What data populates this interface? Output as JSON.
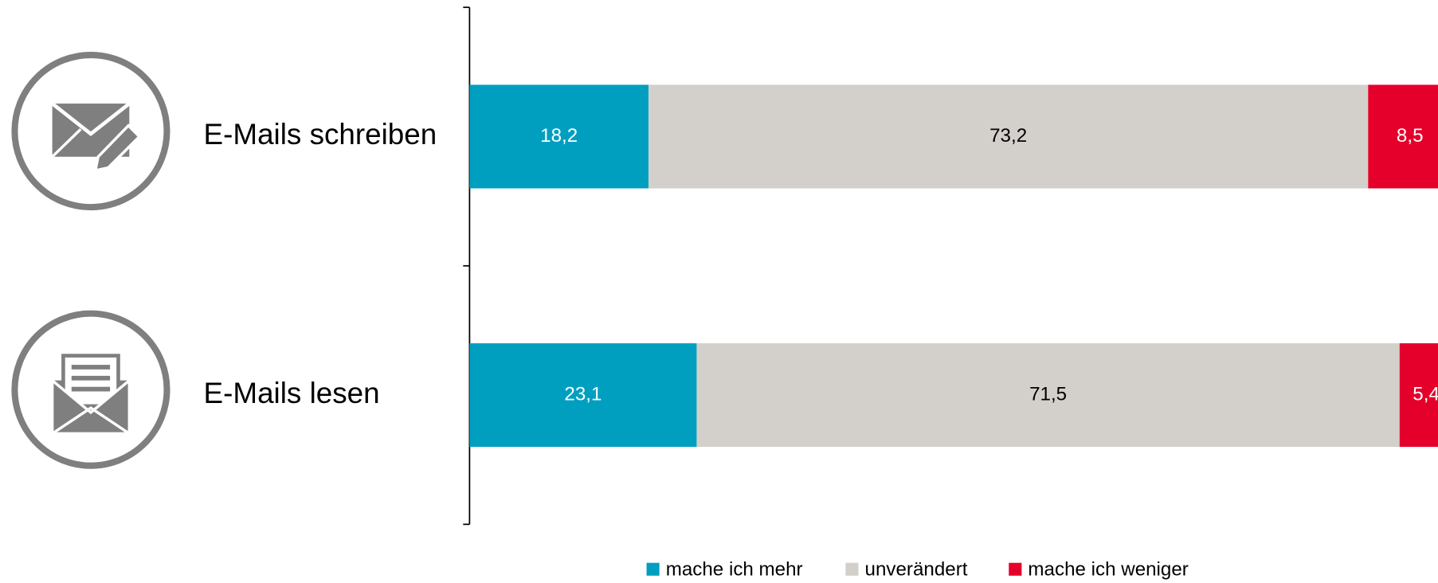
{
  "chart_data": {
    "type": "stacked_barh",
    "categories": [
      "E-Mails schreiben",
      "E-Mails lesen"
    ],
    "series": [
      {
        "name": "mache ich mehr",
        "color": "#009fc0",
        "label_color": "#ffffff",
        "values": [
          18.2,
          23.1
        ],
        "value_labels": [
          "18,2",
          "23,1"
        ]
      },
      {
        "name": "unverändert",
        "color": "#d3d0cb",
        "label_color": "#000000",
        "values": [
          73.2,
          71.5
        ],
        "value_labels": [
          "73,2",
          "71,5"
        ]
      },
      {
        "name": "mache ich weniger",
        "color": "#e4002b",
        "label_color": "#ffffff",
        "values": [
          8.5,
          5.4
        ],
        "value_labels": [
          "8,5",
          "5,4"
        ]
      }
    ],
    "xlim": [
      0,
      100
    ],
    "legend": "bottom"
  }
}
